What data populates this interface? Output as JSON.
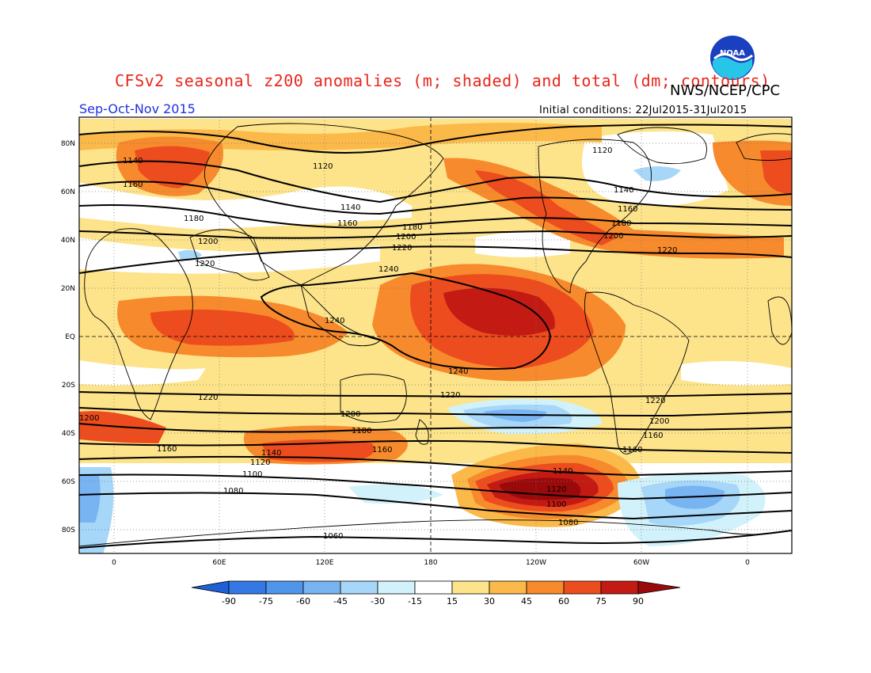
{
  "header": {
    "title": "CFSv2 seasonal z200 anomalies (m; shaded) and total (dm; contours)",
    "agency": "NWS/NCEP/CPC",
    "season": "Sep-Oct-Nov 2015",
    "initial_conditions": "Initial conditions: 22Jul2015-31Jul2015",
    "logo_text": "NOAA"
  },
  "map": {
    "lat_labels": [
      "80N",
      "60N",
      "40N",
      "20N",
      "EQ",
      "20S",
      "40S",
      "60S",
      "80S"
    ],
    "lon_labels": [
      "0",
      "60E",
      "120E",
      "180",
      "120W",
      "60W",
      "0"
    ],
    "contours": [
      {
        "label": "1140",
        "value": 1140
      },
      {
        "label": "1160",
        "value": 1160
      },
      {
        "label": "1180",
        "value": 1180
      },
      {
        "label": "1200",
        "value": 1200
      },
      {
        "label": "1220",
        "value": 1220
      },
      {
        "label": "1240",
        "value": 1240
      },
      {
        "label": "1120",
        "value": 1120
      },
      {
        "label": "1100",
        "value": 1100
      },
      {
        "label": "1080",
        "value": 1080
      },
      {
        "label": "1060",
        "value": 1060
      }
    ]
  },
  "colorbar": {
    "labels": [
      "-90",
      "-75",
      "-60",
      "-45",
      "-30",
      "-15",
      "15",
      "30",
      "45",
      "60",
      "75",
      "90"
    ],
    "colors": [
      "#1f5fd8",
      "#3478e6",
      "#4f95ec",
      "#78b4f2",
      "#a6d6f8",
      "#d2f2fb",
      "#ffffff",
      "#fde38a",
      "#fbb94a",
      "#f78a2c",
      "#ec4c1e",
      "#c31a14",
      "#9b0a0a"
    ]
  }
}
